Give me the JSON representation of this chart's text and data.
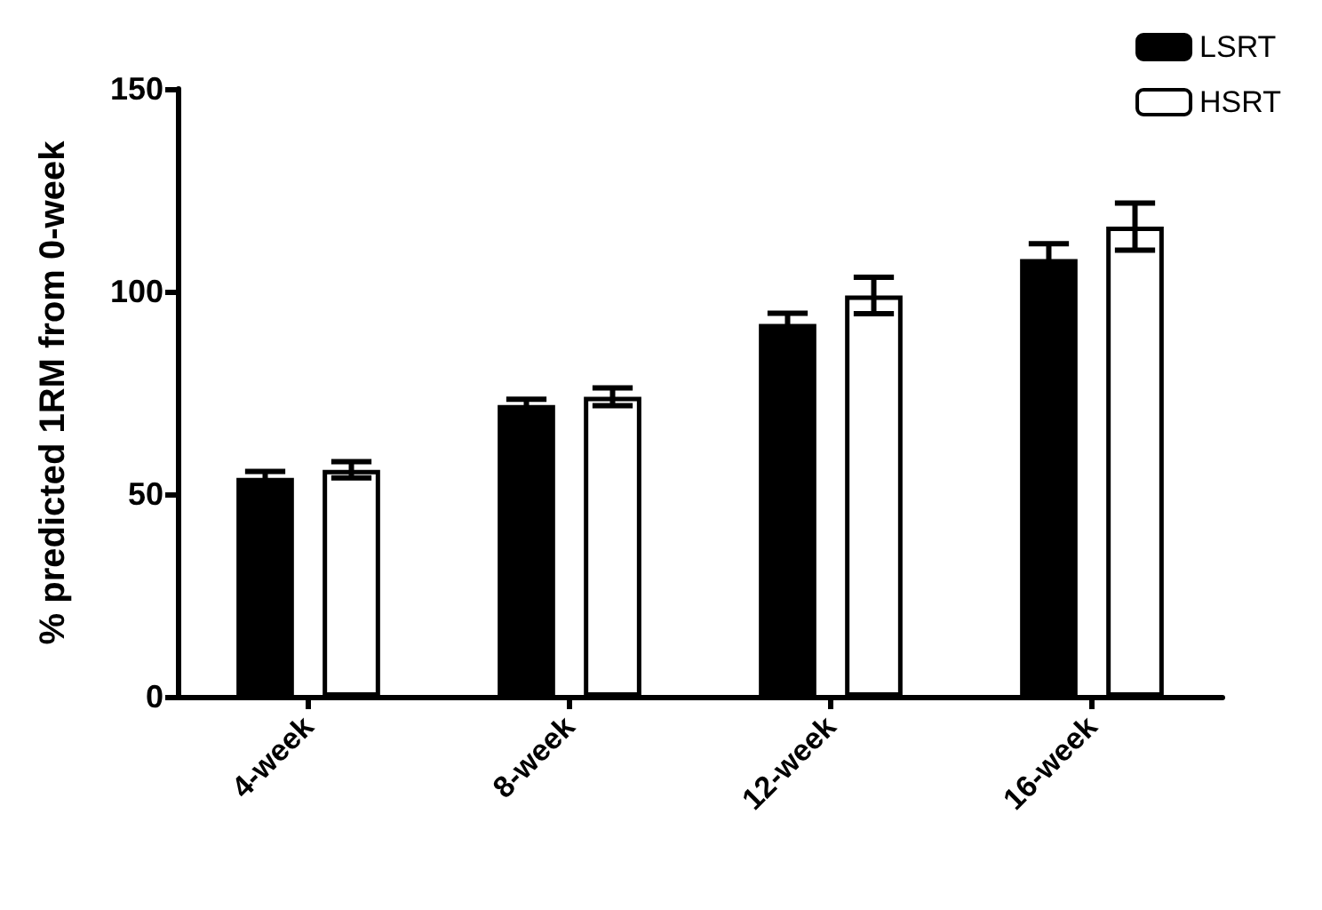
{
  "chart_data": {
    "type": "bar",
    "ylabel": "% predicted 1RM from 0-week",
    "categories": [
      "4-week",
      "8-week",
      "12-week",
      "16-week"
    ],
    "series": [
      {
        "name": "LSRT",
        "color": "#000000",
        "values": [
          54,
          72,
          92,
          108
        ],
        "errors": [
          1.6,
          1.4,
          2.6,
          3.8
        ]
      },
      {
        "name": "HSRT",
        "color": "#ffffff",
        "values": [
          56,
          74,
          99,
          116
        ],
        "errors": [
          2,
          2.2,
          4.5,
          5.8
        ]
      }
    ],
    "ylim": [
      0,
      150
    ],
    "yticks": [
      0,
      50,
      100,
      150
    ],
    "grid": false,
    "legend": "top right"
  }
}
